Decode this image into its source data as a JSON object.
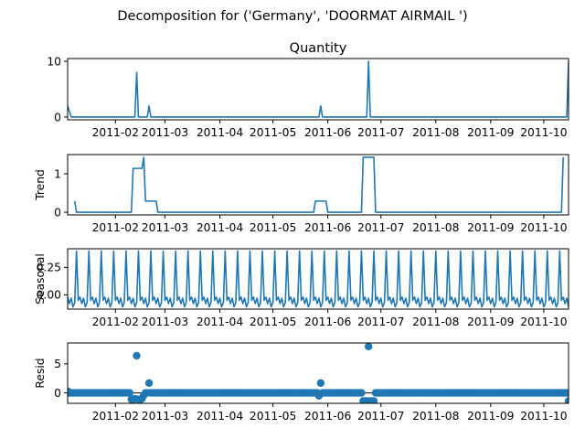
{
  "chart_data": {
    "type": "line",
    "title": "Decomposition for ('Germany', 'DOORMAT AIRMAIL ')",
    "x_tick_labels": [
      "2011-02",
      "2011-03",
      "2011-04",
      "2011-05",
      "2011-06",
      "2011-07",
      "2011-08",
      "2011-09",
      "2011-10"
    ],
    "x_range": [
      "2011-01-05",
      "2011-10-15"
    ],
    "series_color": "#1f77b4",
    "panels": [
      {
        "name": "observed",
        "title": "Quantity",
        "ylabel": "",
        "kind": "line",
        "ylim": [
          -0.5,
          10.5
        ],
        "yticks": [
          0,
          10
        ],
        "ytick_labels": [
          "0",
          "10"
        ],
        "baseline": 0,
        "points": [
          [
            "2011-01-05",
            2
          ],
          [
            "2011-01-07",
            0
          ],
          [
            "2011-02-12",
            0
          ],
          [
            "2011-02-13",
            8
          ],
          [
            "2011-02-14",
            0
          ],
          [
            "2011-02-19",
            0
          ],
          [
            "2011-02-20",
            2
          ],
          [
            "2011-02-21",
            0
          ],
          [
            "2011-05-27",
            0
          ],
          [
            "2011-05-28",
            2
          ],
          [
            "2011-05-29",
            0
          ],
          [
            "2011-06-23",
            0
          ],
          [
            "2011-06-24",
            10
          ],
          [
            "2011-06-25",
            0
          ],
          [
            "2011-10-14",
            0
          ],
          [
            "2011-10-15",
            10
          ]
        ]
      },
      {
        "name": "trend",
        "title": "",
        "ylabel": "Trend",
        "kind": "line",
        "ylim": [
          -0.07,
          1.5
        ],
        "yticks": [
          0,
          1
        ],
        "ytick_labels": [
          "0",
          "1"
        ],
        "points": [
          [
            "2011-01-09",
            0.29
          ],
          [
            "2011-01-10",
            0
          ],
          [
            "2011-02-10",
            0
          ],
          [
            "2011-02-11",
            1.14
          ],
          [
            "2011-02-16",
            1.14
          ],
          [
            "2011-02-17",
            1.43
          ],
          [
            "2011-02-18",
            0.29
          ],
          [
            "2011-02-24",
            0.29
          ],
          [
            "2011-02-25",
            0
          ],
          [
            "2011-05-24",
            0
          ],
          [
            "2011-05-25",
            0.29
          ],
          [
            "2011-05-31",
            0.29
          ],
          [
            "2011-06-01",
            0
          ],
          [
            "2011-06-20",
            0
          ],
          [
            "2011-06-21",
            1.43
          ],
          [
            "2011-06-27",
            1.43
          ],
          [
            "2011-06-28",
            0
          ],
          [
            "2011-10-11",
            0
          ],
          [
            "2011-10-12",
            1.43
          ]
        ]
      },
      {
        "name": "seasonal",
        "title": "",
        "ylabel": "Seasonal",
        "kind": "seasonal",
        "ylim": [
          -0.13,
          0.42
        ],
        "yticks": [
          0.0,
          0.25
        ],
        "ytick_labels": [
          "0.00",
          "0.25"
        ],
        "period_days": 7,
        "weekly_pattern": [
          0.4,
          -0.05,
          -0.02,
          -0.08,
          -0.03,
          -0.11,
          -0.07
        ],
        "first_peak": "2011-01-10"
      },
      {
        "name": "resid",
        "title": "",
        "ylabel": "Resid",
        "kind": "scatter",
        "ylim": [
          -1.8,
          8.6
        ],
        "yticks": [
          0,
          5
        ],
        "ytick_labels": [
          "0",
          "5"
        ],
        "hline": 0,
        "outliers": [
          [
            "2011-01-05",
            0.3
          ],
          [
            "2011-02-10",
            -1.1
          ],
          [
            "2011-02-11",
            -1.2
          ],
          [
            "2011-02-12",
            -1.0
          ],
          [
            "2011-02-13",
            6.4
          ],
          [
            "2011-02-14",
            -1.1
          ],
          [
            "2011-02-15",
            -1.2
          ],
          [
            "2011-02-16",
            -1.0
          ],
          [
            "2011-02-17",
            -0.4
          ],
          [
            "2011-02-20",
            1.7
          ],
          [
            "2011-05-27",
            -0.5
          ],
          [
            "2011-05-28",
            1.7
          ],
          [
            "2011-06-21",
            -1.4
          ],
          [
            "2011-06-22",
            -1.4
          ],
          [
            "2011-06-23",
            -1.4
          ],
          [
            "2011-06-24",
            8.0
          ],
          [
            "2011-06-25",
            -1.4
          ],
          [
            "2011-06-26",
            -1.4
          ],
          [
            "2011-06-27",
            -1.4
          ],
          [
            "2011-10-15",
            -1.4
          ]
        ]
      }
    ]
  }
}
